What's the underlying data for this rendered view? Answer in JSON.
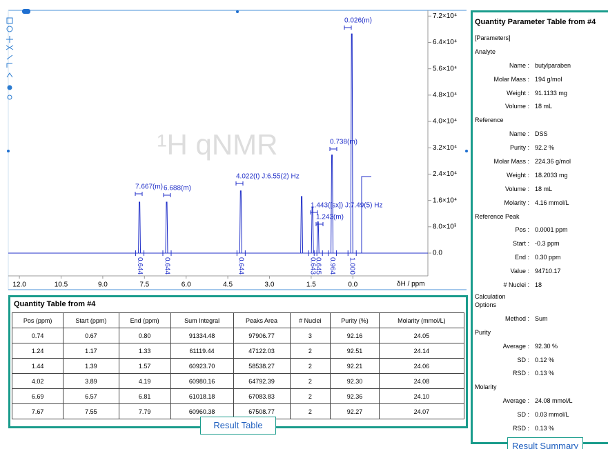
{
  "spectrum": {
    "watermark": "¹H qNMR",
    "x_label": "δH / ppm",
    "xlim": [
      12.4,
      -2.7
    ],
    "xticks": [
      {
        "value": 12,
        "label": "12.0"
      },
      10.5,
      {
        "value": 9,
        "label": "9.0"
      },
      7.5,
      {
        "value": 6,
        "label": "6.0"
      },
      4.5,
      {
        "value": 3,
        "label": "3.0"
      },
      1.5,
      {
        "value": 0,
        "label": "0.0"
      }
    ],
    "ylim": [
      0,
      75000
    ],
    "yticks": [
      {
        "value": 0,
        "label": "0.0"
      },
      {
        "value": 8000,
        "label": "8.0×10³"
      },
      {
        "value": 16000,
        "label": "1.6×10⁴"
      },
      {
        "value": 24000,
        "label": "2.4×10⁴"
      },
      {
        "value": 32000,
        "label": "3.2×10⁴"
      },
      {
        "value": 40000,
        "label": "4.0×10⁴"
      },
      {
        "value": 48000,
        "label": "4.8×10⁴"
      },
      {
        "value": 56000,
        "label": "5.6×10⁴"
      },
      {
        "value": 64000,
        "label": "6.4×10⁴"
      },
      {
        "value": 72000,
        "label": "7.2×10⁴"
      }
    ],
    "color": "#1f2ec8",
    "peaks": [
      {
        "ppm": 7.667,
        "height": 15500,
        "label": "7.667(m)",
        "integral": "0.644"
      },
      {
        "ppm": 6.688,
        "height": 15500,
        "label": "6.688(m)",
        "integral": "0.644"
      },
      {
        "ppm": 4.022,
        "height": 18900,
        "label": "4.022(t) J:6.55(2) Hz",
        "integral": "0.644"
      },
      {
        "ppm": 1.83,
        "height": 17200
      },
      {
        "ppm": 1.443,
        "height": 14000,
        "label": "1.443([sx]) J:7.49(5) Hz",
        "integral": "0.643"
      },
      {
        "ppm": 1.243,
        "height": 9500,
        "label": "1.243(m)",
        "integral": "0.645"
      },
      {
        "ppm": 0.738,
        "height": 29800,
        "label": "0.738(m)",
        "integral": "0.964"
      },
      {
        "ppm": 0.026,
        "height": 66600,
        "label": "0.026(m)",
        "integral": "1.000"
      }
    ]
  },
  "table": {
    "title": "Quantity Table from #4",
    "headers": [
      "Pos (ppm)",
      "Start (ppm)",
      "End (ppm)",
      "Sum Integral",
      "Peaks Area",
      "# Nuclei",
      "Purity (%)",
      "Molarity (mmol/L)"
    ],
    "rows": [
      [
        "0.74",
        "0.67",
        "0.80",
        "91334.48",
        "97906.77",
        "3",
        "92.16",
        "24.05"
      ],
      [
        "1.24",
        "1.17",
        "1.33",
        "61119.44",
        "47122.03",
        "2",
        "92.51",
        "24.14"
      ],
      [
        "1.44",
        "1.39",
        "1.57",
        "60923.70",
        "58538.27",
        "2",
        "92.21",
        "24.06"
      ],
      [
        "4.02",
        "3.89",
        "4.19",
        "60980.16",
        "64792.39",
        "2",
        "92.30",
        "24.08"
      ],
      [
        "6.69",
        "6.57",
        "6.81",
        "61018.18",
        "67083.83",
        "2",
        "92.36",
        "24.10"
      ],
      [
        "7.67",
        "7.55",
        "7.79",
        "60960.38",
        "67508.77",
        "2",
        "92.27",
        "24.07"
      ]
    ],
    "button": "Result Table"
  },
  "summary": {
    "title": "Quantity Parameter Table from #4",
    "items": [
      {
        "heading": "[Parameters]"
      },
      {
        "heading": "Analyte"
      },
      {
        "key": "Name :",
        "value": "butylparaben"
      },
      {
        "key": "Molar Mass :",
        "value": "194 g/mol"
      },
      {
        "key": "Weight :",
        "value": "91.1133 mg"
      },
      {
        "key": "Volume :",
        "value": "18 mL"
      },
      {
        "heading": "Reference"
      },
      {
        "key": "Name :",
        "value": "DSS"
      },
      {
        "key": "Purity :",
        "value": "92.2 %"
      },
      {
        "key": "Molar Mass :",
        "value": "224.36 g/mol"
      },
      {
        "key": "Weight :",
        "value": "18.2033 mg"
      },
      {
        "key": "Volume :",
        "value": "18 mL"
      },
      {
        "key": "Molarity :",
        "value": "4.16 mmol/L"
      },
      {
        "heading": "Reference Peak"
      },
      {
        "key": "Pos :",
        "value": "0.0001 ppm"
      },
      {
        "key": "Start :",
        "value": "-0.3 ppm"
      },
      {
        "key": "End :",
        "value": "0.30 ppm"
      },
      {
        "key": "Value :",
        "value": "94710.17"
      },
      {
        "key": "# Nuclei :",
        "value": "18"
      },
      {
        "heading": "Calculation Options"
      },
      {
        "key": "Method :",
        "value": "Sum"
      },
      {
        "heading": "Purity"
      },
      {
        "key": "Average :",
        "value": "92.30 %"
      },
      {
        "key": "SD :",
        "value": "0.12 %"
      },
      {
        "key": "RSD :",
        "value": "0.13 %"
      },
      {
        "heading": "Molarity"
      },
      {
        "key": "Average :",
        "value": "24.08 mmol/L"
      },
      {
        "key": "SD :",
        "value": "0.03 mmol/L"
      },
      {
        "key": "RSD :",
        "value": "0.13 %"
      }
    ],
    "button": "Result Summary"
  }
}
